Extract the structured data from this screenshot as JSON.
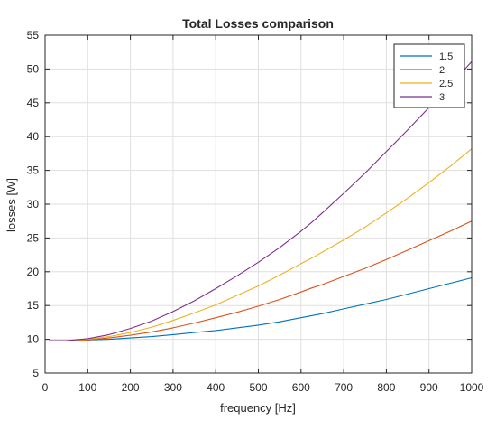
{
  "chart_data": {
    "type": "line",
    "title": "Total Losses comparison",
    "xlabel": "frequency [Hz]",
    "ylabel": "losses [W]",
    "xlim": [
      0,
      1000
    ],
    "ylim": [
      5,
      55
    ],
    "xticks": [
      0,
      100,
      200,
      300,
      400,
      500,
      600,
      700,
      800,
      900,
      1000
    ],
    "yticks": [
      5,
      10,
      15,
      20,
      25,
      30,
      35,
      40,
      45,
      50,
      55
    ],
    "grid": true,
    "legend_position": "top-right",
    "x": [
      10,
      50,
      100,
      150,
      200,
      250,
      300,
      350,
      400,
      450,
      500,
      550,
      600,
      625,
      650,
      700,
      750,
      800,
      850,
      900,
      950,
      1000
    ],
    "series": [
      {
        "name": "1.5",
        "color": "#0072BD",
        "values": [
          9.8,
          9.8,
          9.9,
          10.0,
          10.2,
          10.4,
          10.7,
          11.0,
          11.3,
          11.7,
          12.1,
          12.6,
          13.2,
          13.5,
          13.8,
          14.5,
          15.2,
          15.9,
          16.7,
          17.5,
          18.3,
          19.1
        ]
      },
      {
        "name": "2",
        "color": "#D95319",
        "values": [
          9.8,
          9.8,
          9.9,
          10.2,
          10.6,
          11.1,
          11.7,
          12.4,
          13.2,
          14.0,
          14.9,
          15.9,
          17.0,
          17.6,
          18.1,
          19.3,
          20.5,
          21.8,
          23.2,
          24.6,
          26.0,
          27.5
        ]
      },
      {
        "name": "2.5",
        "color": "#EDB120",
        "values": [
          9.8,
          9.8,
          10.0,
          10.4,
          11.0,
          11.8,
          12.8,
          13.9,
          15.1,
          16.5,
          17.9,
          19.5,
          21.2,
          22.0,
          22.9,
          24.7,
          26.6,
          28.7,
          30.9,
          33.2,
          35.6,
          38.2
        ]
      },
      {
        "name": "3",
        "color": "#7E2F8E",
        "values": [
          9.8,
          9.8,
          10.1,
          10.7,
          11.6,
          12.7,
          14.1,
          15.7,
          17.5,
          19.4,
          21.4,
          23.6,
          26.0,
          27.3,
          28.7,
          31.6,
          34.6,
          37.8,
          41.0,
          44.3,
          47.6,
          51.1
        ]
      }
    ]
  }
}
